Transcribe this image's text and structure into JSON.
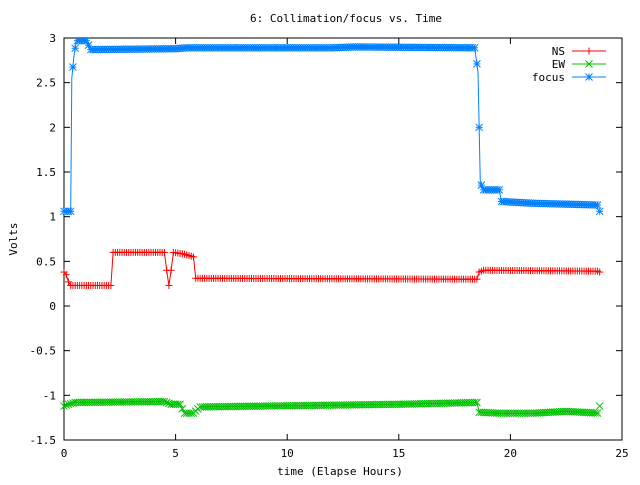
{
  "chart_data": {
    "type": "line",
    "title": "6: Collimation/focus vs. Time",
    "xlabel": "time (Elapse Hours)",
    "ylabel": "Volts",
    "xlim": [
      0,
      25
    ],
    "ylim": [
      -1.5,
      3
    ],
    "xticks": [
      0,
      5,
      10,
      15,
      20,
      25
    ],
    "xtick_labels": [
      "0",
      "5",
      "10",
      "15",
      "20",
      "25"
    ],
    "yticks": [
      -1.5,
      -1,
      -0.5,
      0,
      0.5,
      1,
      1.5,
      2,
      2.5,
      3
    ],
    "ytick_labels": [
      "-1.5",
      "-1",
      "-0.5",
      "0",
      "0.5",
      "1",
      "1.5",
      "2",
      "2.5",
      "3"
    ],
    "grid": false,
    "legend_position": "top-right",
    "series": [
      {
        "name": "NS",
        "color": "#ff0000",
        "marker": "plus",
        "points": [
          [
            0.0,
            0.38
          ],
          [
            0.1,
            0.35
          ],
          [
            0.2,
            0.27
          ],
          [
            0.3,
            0.23
          ],
          [
            2.1,
            0.23
          ],
          [
            2.2,
            0.6
          ],
          [
            4.5,
            0.6
          ],
          [
            4.6,
            0.4
          ],
          [
            4.7,
            0.23
          ],
          [
            4.8,
            0.4
          ],
          [
            4.9,
            0.6
          ],
          [
            5.4,
            0.58
          ],
          [
            5.8,
            0.55
          ],
          [
            5.9,
            0.31
          ],
          [
            18.5,
            0.3
          ],
          [
            18.6,
            0.38
          ],
          [
            18.8,
            0.4
          ],
          [
            24.0,
            0.39
          ]
        ]
      },
      {
        "name": "EW",
        "color": "#00c000",
        "marker": "cross",
        "points": [
          [
            0.0,
            -1.12
          ],
          [
            0.2,
            -1.1
          ],
          [
            0.5,
            -1.08
          ],
          [
            4.5,
            -1.07
          ],
          [
            4.8,
            -1.1
          ],
          [
            5.2,
            -1.1
          ],
          [
            5.4,
            -1.2
          ],
          [
            5.8,
            -1.2
          ],
          [
            6.1,
            -1.13
          ],
          [
            15.0,
            -1.1
          ],
          [
            18.5,
            -1.08
          ],
          [
            18.6,
            -1.19
          ],
          [
            19.5,
            -1.2
          ],
          [
            21.0,
            -1.2
          ],
          [
            22.5,
            -1.18
          ],
          [
            24.0,
            -1.2
          ]
        ]
      },
      {
        "name": "focus",
        "color": "#0080ff",
        "marker": "star",
        "points": [
          [
            0.0,
            1.06
          ],
          [
            0.3,
            1.06
          ],
          [
            0.35,
            2.55
          ],
          [
            0.45,
            2.8
          ],
          [
            0.55,
            2.97
          ],
          [
            1.0,
            2.97
          ],
          [
            1.2,
            2.87
          ],
          [
            5.0,
            2.88
          ],
          [
            5.5,
            2.89
          ],
          [
            12.0,
            2.89
          ],
          [
            13.0,
            2.9
          ],
          [
            18.4,
            2.89
          ],
          [
            18.55,
            2.62
          ],
          [
            18.65,
            1.38
          ],
          [
            18.8,
            1.3
          ],
          [
            19.5,
            1.3
          ],
          [
            19.6,
            1.17
          ],
          [
            21.0,
            1.15
          ],
          [
            24.0,
            1.13
          ]
        ]
      }
    ]
  }
}
